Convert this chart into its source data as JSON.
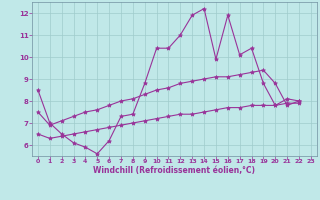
{
  "background_color": "#c0e8e8",
  "grid_color": "#a0cccc",
  "line_color": "#993399",
  "marker": "*",
  "marker_size": 3,
  "line_width": 0.8,
  "xlabel": "Windchill (Refroidissement éolien,°C)",
  "xlabel_fontsize": 5.5,
  "xtick_fontsize": 4.5,
  "ytick_fontsize": 5.0,
  "xlim": [
    -0.5,
    23.5
  ],
  "ylim": [
    5.5,
    12.5
  ],
  "yticks": [
    6,
    7,
    8,
    9,
    10,
    11,
    12
  ],
  "xticks": [
    0,
    1,
    2,
    3,
    4,
    5,
    6,
    7,
    8,
    9,
    10,
    11,
    12,
    13,
    14,
    15,
    16,
    17,
    18,
    19,
    20,
    21,
    22,
    23
  ],
  "series": [
    [
      8.5,
      7.0,
      6.5,
      6.1,
      5.9,
      5.6,
      6.2,
      7.3,
      7.4,
      8.8,
      10.4,
      10.4,
      11.0,
      11.9,
      12.2,
      9.9,
      11.9,
      10.1,
      10.4,
      8.8,
      7.8,
      8.1,
      8.0
    ],
    [
      7.5,
      6.9,
      7.1,
      7.3,
      7.5,
      7.6,
      7.8,
      8.0,
      8.1,
      8.3,
      8.5,
      8.6,
      8.8,
      8.9,
      9.0,
      9.1,
      9.1,
      9.2,
      9.3,
      9.4,
      8.8,
      7.8,
      8.0
    ],
    [
      6.5,
      6.3,
      6.4,
      6.5,
      6.6,
      6.7,
      6.8,
      6.9,
      7.0,
      7.1,
      7.2,
      7.3,
      7.4,
      7.4,
      7.5,
      7.6,
      7.7,
      7.7,
      7.8,
      7.8,
      7.8,
      7.9,
      7.9
    ]
  ]
}
